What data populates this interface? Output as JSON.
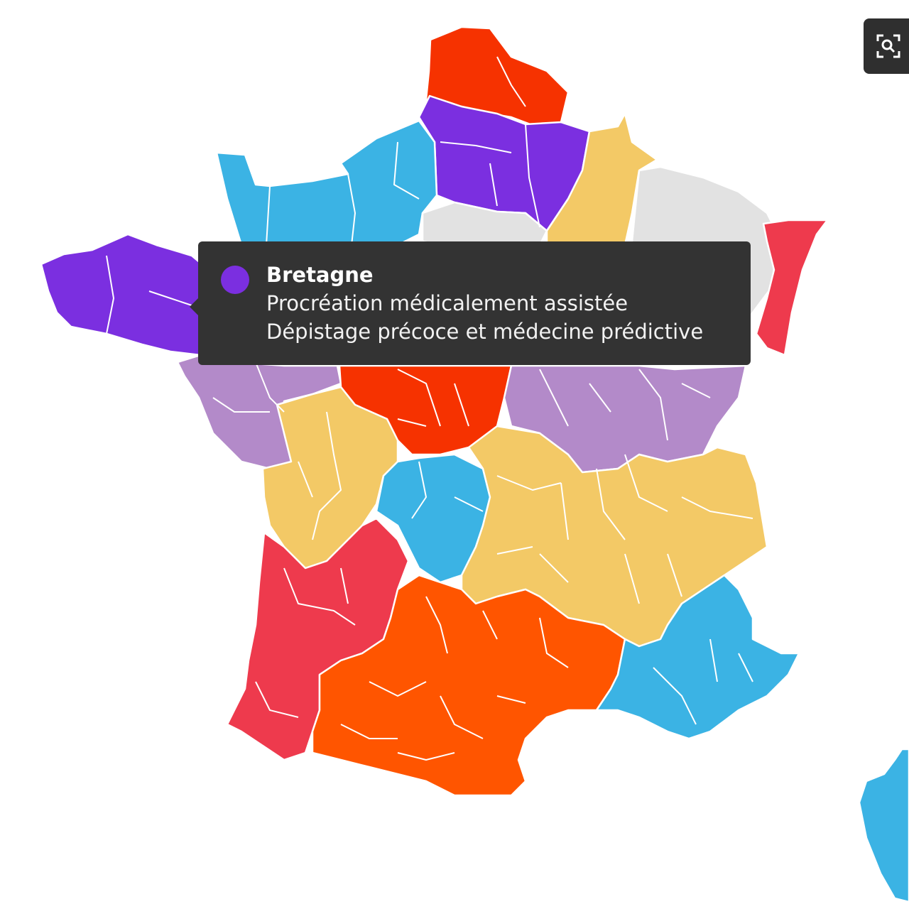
{
  "palette": {
    "purple": "#7b2fe0",
    "light_purple": "#b38ac9",
    "red_orange": "#f63200",
    "orange": "#ff5500",
    "red": "#ee3a4d",
    "blue": "#3bb3e4",
    "yellow": "#f3c966",
    "grey": "#e2e2e2"
  },
  "toolbar": {
    "fullscreen_icon": "fullscreen-zoom-icon"
  },
  "tooltip": {
    "region": "Bretagne",
    "color": "#7b2fe0",
    "lines": [
      "Procréation médicalement assistée",
      "Dépistage précoce et médecine prédictive"
    ]
  }
}
